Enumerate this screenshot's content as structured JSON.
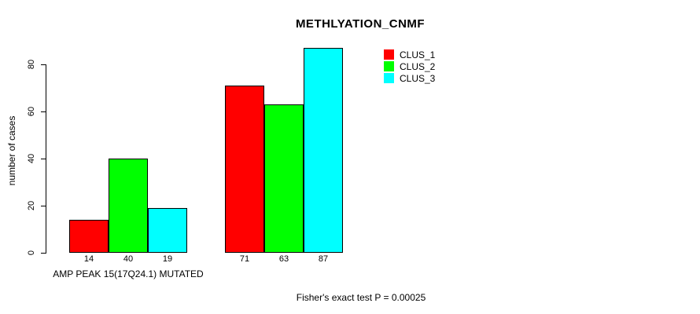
{
  "chart_data": {
    "type": "bar",
    "title": "METHLYATION_CNMF",
    "ylabel": "number of cases",
    "xlabel": "AMP PEAK 15(17Q24.1) MUTATED",
    "categories": [
      "AMP PEAK 15(17Q24.1) MUTATED",
      ""
    ],
    "series": [
      {
        "name": "CLUS_1",
        "color": "#ff0000",
        "values": [
          14,
          71
        ]
      },
      {
        "name": "CLUS_2",
        "color": "#00ff00",
        "values": [
          40,
          63
        ]
      },
      {
        "name": "CLUS_3",
        "color": "#00ffff",
        "values": [
          19,
          87
        ]
      }
    ],
    "yticks": [
      0,
      20,
      40,
      60,
      80
    ],
    "ylim": [
      0,
      88
    ],
    "grid": false,
    "bar_value_labels_shown": true,
    "legend_position": "top-right",
    "annotation": "Fisher's exact test P = 0.00025"
  }
}
